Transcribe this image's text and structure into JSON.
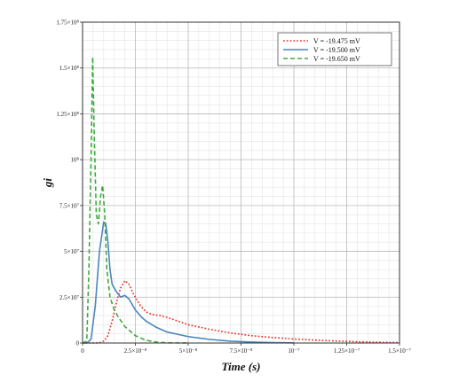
{
  "chart_data": {
    "type": "line",
    "title": "",
    "xlabel": "Time (s)",
    "ylabel": "gi",
    "xlim": [
      0,
      1.5e-07
    ],
    "ylim": [
      0,
      175000000.0
    ],
    "grid": true,
    "legend_position": "top-right",
    "x_ticks": [
      {
        "value": 0,
        "label": "0"
      },
      {
        "value": 2.5e-08,
        "label": "2.5×10⁻⁸"
      },
      {
        "value": 5e-08,
        "label": "5×10⁻⁸"
      },
      {
        "value": 7.5e-08,
        "label": "7.5×10⁻⁸"
      },
      {
        "value": 1e-07,
        "label": "10⁻⁷"
      },
      {
        "value": 1.25e-07,
        "label": "1.25×10⁻⁷"
      },
      {
        "value": 1.5e-07,
        "label": "1.5×10⁻⁷"
      }
    ],
    "y_ticks": [
      {
        "value": 0,
        "label": "0"
      },
      {
        "value": 25000000.0,
        "label": "2.5×10⁷"
      },
      {
        "value": 50000000.0,
        "label": "5×10⁷"
      },
      {
        "value": 75000000.0,
        "label": "7.5×10⁷"
      },
      {
        "value": 100000000.0,
        "label": "10⁸"
      },
      {
        "value": 125000000.0,
        "label": "1.25×10⁸"
      },
      {
        "value": 150000000.0,
        "label": "1.5×10⁸"
      },
      {
        "value": 175000000.0,
        "label": "1.75×10⁸"
      }
    ],
    "series": [
      {
        "name": "V = -19.475 mV",
        "color": "#e8322e",
        "dash": "dotted",
        "points": [
          [
            0,
            0
          ],
          [
            5e-09,
            0
          ],
          [
            8e-09,
            100000
          ],
          [
            1e-08,
            1000000
          ],
          [
            1.2e-08,
            4000000
          ],
          [
            1.4e-08,
            12000000
          ],
          [
            1.6e-08,
            22000000
          ],
          [
            1.8e-08,
            30000000
          ],
          [
            2e-08,
            34000000
          ],
          [
            2.2e-08,
            32000000
          ],
          [
            2.4e-08,
            27000000
          ],
          [
            2.7e-08,
            21000000
          ],
          [
            3e-08,
            17000000
          ],
          [
            3.3e-08,
            15500000
          ],
          [
            3.7e-08,
            15000000
          ],
          [
            4e-08,
            14000000
          ],
          [
            4.5e-08,
            12000000
          ],
          [
            5e-08,
            10000000
          ],
          [
            6e-08,
            7500000
          ],
          [
            7e-08,
            5500000
          ],
          [
            8e-08,
            4000000
          ],
          [
            9e-08,
            3000000
          ],
          [
            1e-07,
            2200000
          ],
          [
            1.1e-07,
            1600000
          ],
          [
            1.2e-07,
            1100000
          ],
          [
            1.3e-07,
            700000
          ],
          [
            1.4e-07,
            400000
          ],
          [
            1.5e-07,
            200000
          ]
        ]
      },
      {
        "name": "V = -19.500 mV",
        "color": "#4a86bd",
        "dash": "solid",
        "points": [
          [
            0,
            0
          ],
          [
            2e-09,
            0
          ],
          [
            4e-09,
            2000000
          ],
          [
            6e-09,
            20000000
          ],
          [
            8e-09,
            50000000
          ],
          [
            1e-08,
            66000000
          ],
          [
            1.1e-08,
            65000000
          ],
          [
            1.2e-08,
            55000000
          ],
          [
            1.3e-08,
            40000000
          ],
          [
            1.4e-08,
            32000000
          ],
          [
            1.6e-08,
            28000000
          ],
          [
            1.8e-08,
            25000000
          ],
          [
            2e-08,
            26000000
          ],
          [
            2.2e-08,
            24000000
          ],
          [
            2.5e-08,
            18000000
          ],
          [
            2.8e-08,
            14000000
          ],
          [
            3e-08,
            12000000
          ],
          [
            3.5e-08,
            8500000
          ],
          [
            4e-08,
            6000000
          ],
          [
            5e-08,
            3500000
          ],
          [
            6e-08,
            2000000
          ],
          [
            7e-08,
            1000000
          ],
          [
            8e-08,
            500000
          ],
          [
            9e-08,
            200000
          ],
          [
            1e-07,
            100000
          ]
        ]
      },
      {
        "name": "V = -19.650 mV",
        "color": "#3daa3d",
        "dash": "dashed",
        "points": [
          [
            0,
            0
          ],
          [
            2e-09,
            1000000
          ],
          [
            3e-09,
            40000000
          ],
          [
            4e-09,
            100000000
          ],
          [
            4.8e-09,
            156000000
          ],
          [
            5.5e-09,
            115000000
          ],
          [
            6.5e-09,
            70000000
          ],
          [
            7.5e-09,
            65000000
          ],
          [
            8.5e-09,
            80000000
          ],
          [
            9.5e-09,
            86000000
          ],
          [
            1.05e-08,
            70000000
          ],
          [
            1.15e-08,
            40000000
          ],
          [
            1.3e-08,
            25000000
          ],
          [
            1.5e-08,
            18000000
          ],
          [
            1.7e-08,
            14000000
          ],
          [
            2e-08,
            9000000
          ],
          [
            2.5e-08,
            4000000
          ],
          [
            3e-08,
            1500000
          ],
          [
            3.5e-08,
            500000
          ],
          [
            4e-08,
            100000
          ],
          [
            5e-08,
            0
          ]
        ]
      }
    ]
  }
}
